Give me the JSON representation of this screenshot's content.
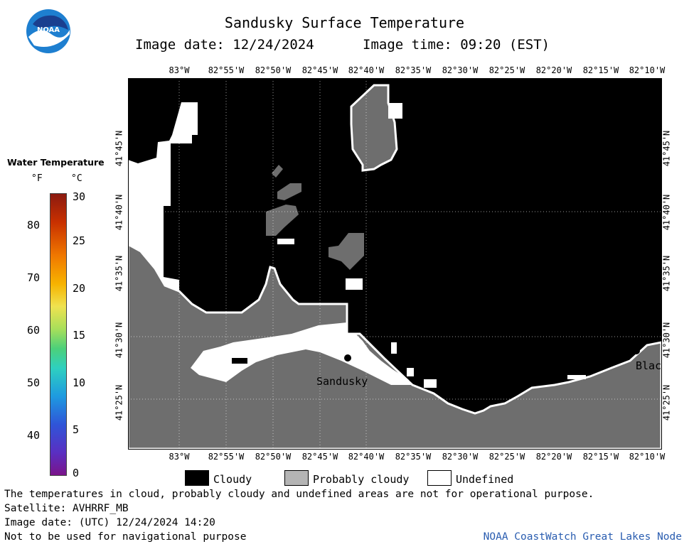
{
  "header": {
    "title": "Sandusky Surface Temperature",
    "image_date_label": "Image date: 12/24/2024",
    "image_time_label": "Image time: 09:20 (EST)",
    "logo_text": "NOAA"
  },
  "map": {
    "lon_labels": [
      "83°W",
      "82°55'W",
      "82°50'W",
      "82°45'W",
      "82°40'W",
      "82°35'W",
      "82°30'W",
      "82°25'W",
      "82°20'W",
      "82°15'W",
      "82°10'W"
    ],
    "lat_labels": [
      "41°45'N",
      "41°40'N",
      "41°35'N",
      "41°30'N",
      "41°25'N"
    ],
    "places": {
      "sandusky": "Sandusky",
      "bla": "Blac"
    },
    "colors": {
      "cloudy": "#000000",
      "probably_cloudy": "#6e6e6e",
      "undefined": "#ffffff"
    }
  },
  "legend": {
    "title": "Water Temperature",
    "unit_f": "°F",
    "unit_c": "°C",
    "f_ticks": [
      "80",
      "70",
      "60",
      "50",
      "40"
    ],
    "c_ticks": [
      "30",
      "25",
      "20",
      "15",
      "10",
      "5",
      "0"
    ]
  },
  "key": {
    "cloudy": "Cloudy",
    "probably_cloudy": "Probably cloudy",
    "undefined": "Undefined"
  },
  "footer": {
    "note": "The temperatures in cloud, probably cloudy and undefined areas are not for operational purpose.",
    "satellite": "Satellite: AVHRRF_MB",
    "utc_date": "Image date: (UTC) 12/24/2024  14:20",
    "nav": "Not to be used for navigational purpose",
    "credit": "NOAA CoastWatch Great Lakes Node"
  }
}
